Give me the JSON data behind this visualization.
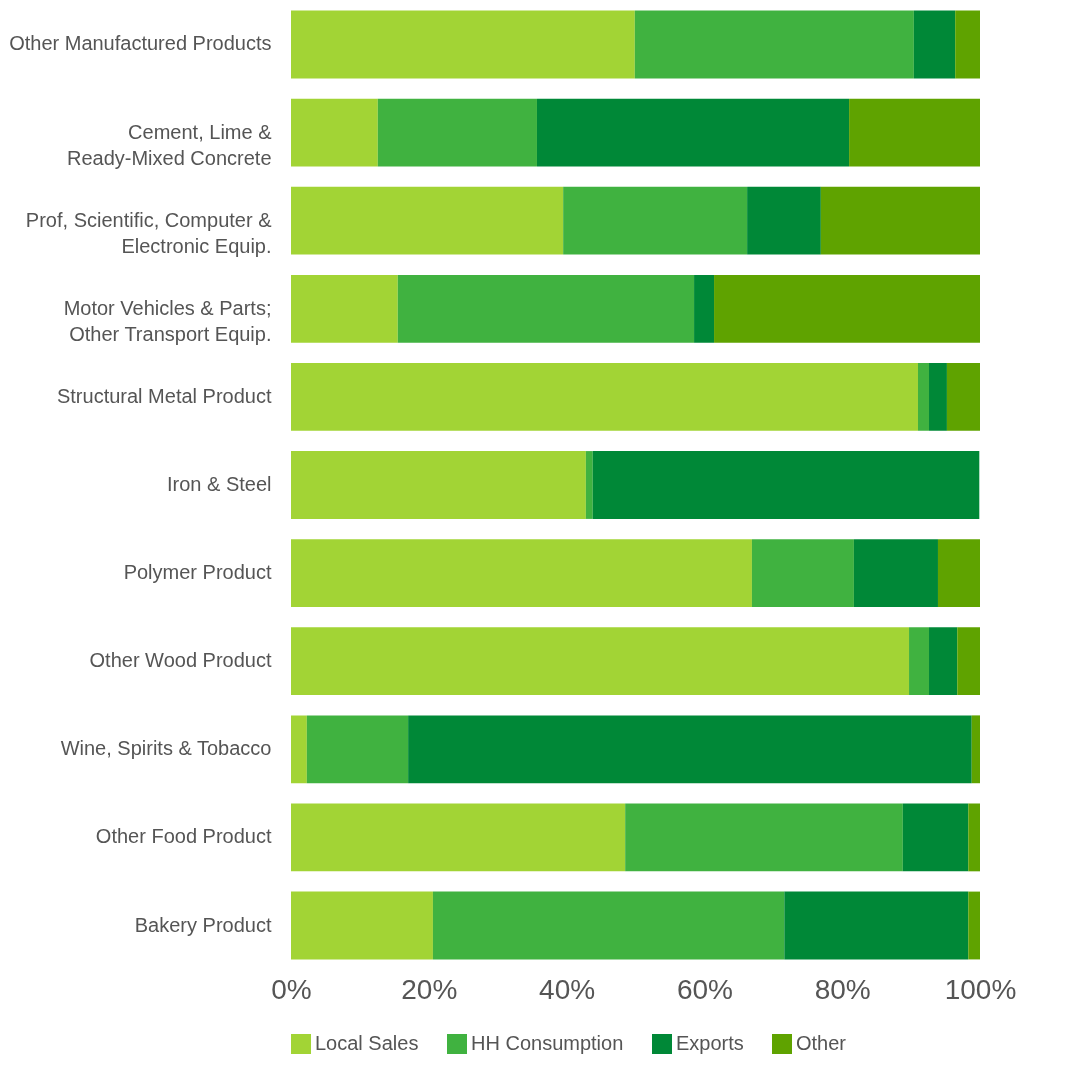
{
  "chart_data": {
    "type": "bar",
    "orientation": "horizontal",
    "stacked": true,
    "categories": [
      "Other Manufactured Products",
      "Cement, Lime &\nReady-Mixed Concrete",
      "Prof, Scientific, Computer &\nElectronic Equip.",
      "Motor Vehicles & Parts;\nOther Transport Equip.",
      "Structural Metal Product",
      "Iron & Steel",
      "Polymer Product",
      "Other Wood Product",
      "Wine, Spirits & Tobacco",
      "Other Food Product",
      "Bakery Product"
    ],
    "series": [
      {
        "name": "Local Sales",
        "color": "#a2d435",
        "values": [
          49.9,
          12.6,
          39.5,
          15.5,
          91.0,
          42.8,
          66.9,
          89.7,
          2.3,
          48.5,
          20.6
        ]
      },
      {
        "name": "HH Consumption",
        "color": "#40b240",
        "values": [
          40.5,
          23.1,
          26.7,
          43.0,
          1.6,
          1.0,
          14.8,
          2.9,
          14.7,
          40.3,
          51.0
        ]
      },
      {
        "name": "Exports",
        "color": "#008837",
        "values": [
          6.0,
          45.3,
          10.7,
          2.9,
          2.6,
          56.1,
          12.2,
          4.1,
          81.8,
          9.5,
          26.7
        ]
      },
      {
        "name": "Other",
        "color": "#5fa300",
        "values": [
          3.6,
          19.0,
          23.1,
          38.6,
          4.8,
          null,
          6.1,
          3.3,
          1.2,
          1.7,
          1.7
        ]
      }
    ],
    "xlim": [
      0,
      100
    ],
    "xticks": [
      {
        "value": 0,
        "label": "0%"
      },
      {
        "value": 20,
        "label": "20%"
      },
      {
        "value": 40,
        "label": "40%"
      },
      {
        "value": 60,
        "label": "60%"
      },
      {
        "value": 80,
        "label": "80%"
      },
      {
        "value": 100,
        "label": "100%"
      }
    ],
    "grid": false,
    "legend": "bottom"
  }
}
